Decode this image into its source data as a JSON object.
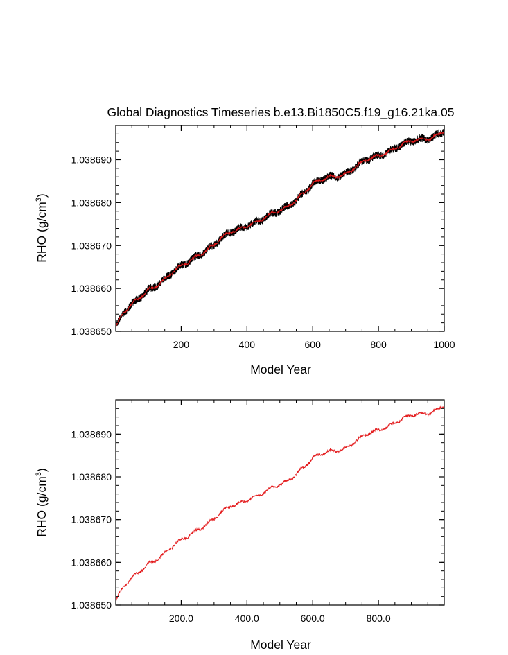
{
  "colors": {
    "mean_line": "#e31a1c",
    "raw_band": "#000000",
    "axis": "#000000",
    "background": "#ffffff"
  },
  "chart_data": [
    {
      "type": "line",
      "title": "Global Diagnostics Timeseries b.e13.Bi1850C5.f19_g16.21ka.05",
      "xlabel": "Model Year",
      "ylabel_main": "RHO (g/cm",
      "ylabel_sup": "3",
      "ylabel_close": ")",
      "xlim": [
        1,
        1000
      ],
      "ylim": [
        1.03865,
        1.038698
      ],
      "x_ticks": [
        200,
        400,
        600,
        800,
        1000
      ],
      "x_tick_labels": [
        "200",
        "400",
        "600",
        "800",
        "1000"
      ],
      "y_ticks": [
        1.03865,
        1.03866,
        1.03867,
        1.03868,
        1.03869
      ],
      "y_tick_labels": [
        "1.038650",
        "1.038660",
        "1.038670",
        "1.038680",
        "1.038690"
      ],
      "grid": false,
      "series": [
        {
          "style": "raw-noisy-band",
          "x": [
            1,
            25,
            50,
            75,
            100,
            150,
            200,
            250,
            300,
            350,
            400,
            450,
            500,
            550,
            600,
            650,
            700,
            750,
            800,
            850,
            900,
            950,
            1000
          ],
          "y": [
            1.038651,
            1.038654,
            1.038656,
            1.038658,
            1.03866,
            1.038662,
            1.038665,
            1.038668,
            1.03867,
            1.038673,
            1.038675,
            1.038676,
            1.038678,
            1.038681,
            1.038684,
            1.038686,
            1.038687,
            1.038689,
            1.038691,
            1.038693,
            1.038694,
            1.038695,
            1.038697
          ]
        },
        {
          "style": "running-mean",
          "x": [
            1,
            25,
            50,
            75,
            100,
            150,
            200,
            250,
            300,
            350,
            400,
            450,
            500,
            550,
            600,
            650,
            700,
            750,
            800,
            850,
            900,
            950,
            1000
          ],
          "y": [
            1.038651,
            1.038654,
            1.038656,
            1.038658,
            1.03866,
            1.038662,
            1.038665,
            1.038668,
            1.03867,
            1.038673,
            1.038675,
            1.038676,
            1.038678,
            1.038681,
            1.038684,
            1.038686,
            1.038687,
            1.038689,
            1.038691,
            1.038693,
            1.038694,
            1.038695,
            1.038697
          ]
        }
      ]
    },
    {
      "type": "line",
      "title": "",
      "xlabel": "Model Year",
      "ylabel_main": "RHO (g/cm",
      "ylabel_sup": "3",
      "ylabel_close": ")",
      "xlim": [
        1,
        1000
      ],
      "ylim": [
        1.03865,
        1.038698
      ],
      "x_ticks": [
        200,
        400,
        600,
        800
      ],
      "x_tick_labels": [
        "200.0",
        "400.0",
        "600.0",
        "800.0"
      ],
      "y_ticks": [
        1.03865,
        1.03866,
        1.03867,
        1.03868,
        1.03869
      ],
      "y_tick_labels": [
        "1.038650",
        "1.038660",
        "1.038670",
        "1.038680",
        "1.038690"
      ],
      "grid": false,
      "series": [
        {
          "style": "running-mean",
          "x": [
            1,
            25,
            50,
            75,
            100,
            150,
            200,
            250,
            300,
            350,
            400,
            450,
            500,
            550,
            600,
            650,
            700,
            750,
            800,
            850,
            900,
            950,
            1000
          ],
          "y": [
            1.038651,
            1.038654,
            1.038656,
            1.038658,
            1.03866,
            1.038662,
            1.038665,
            1.038668,
            1.03867,
            1.038673,
            1.038675,
            1.038676,
            1.038678,
            1.038681,
            1.038684,
            1.038686,
            1.038687,
            1.038689,
            1.038691,
            1.038693,
            1.038694,
            1.038695,
            1.038697
          ]
        }
      ]
    }
  ]
}
